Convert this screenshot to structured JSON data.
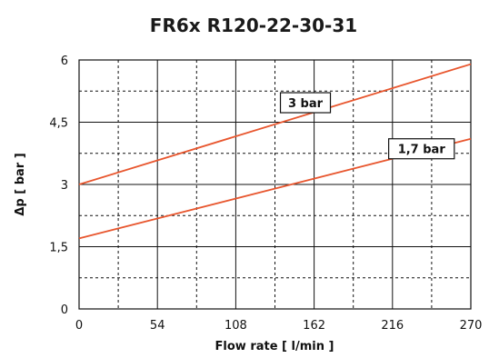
{
  "chart_data": {
    "type": "line",
    "title": "FR6x R120-22-30-31",
    "xlabel": "Flow rate [ l/min ]",
    "ylabel": "Δp [ bar ]",
    "xlim": [
      0,
      270
    ],
    "ylim": [
      0,
      6
    ],
    "x_ticks": [
      "0",
      "54",
      "108",
      "162",
      "216",
      "270"
    ],
    "y_ticks": [
      "0",
      "1,5",
      "3",
      "4,5",
      "6"
    ],
    "grid": true,
    "line_color": "#e8562e",
    "series": [
      {
        "name": "3 bar",
        "x": [
          0,
          270
        ],
        "y": [
          3.0,
          5.9
        ]
      },
      {
        "name": "1,7 bar",
        "x": [
          0,
          270
        ],
        "y": [
          1.7,
          4.1
        ]
      }
    ]
  }
}
